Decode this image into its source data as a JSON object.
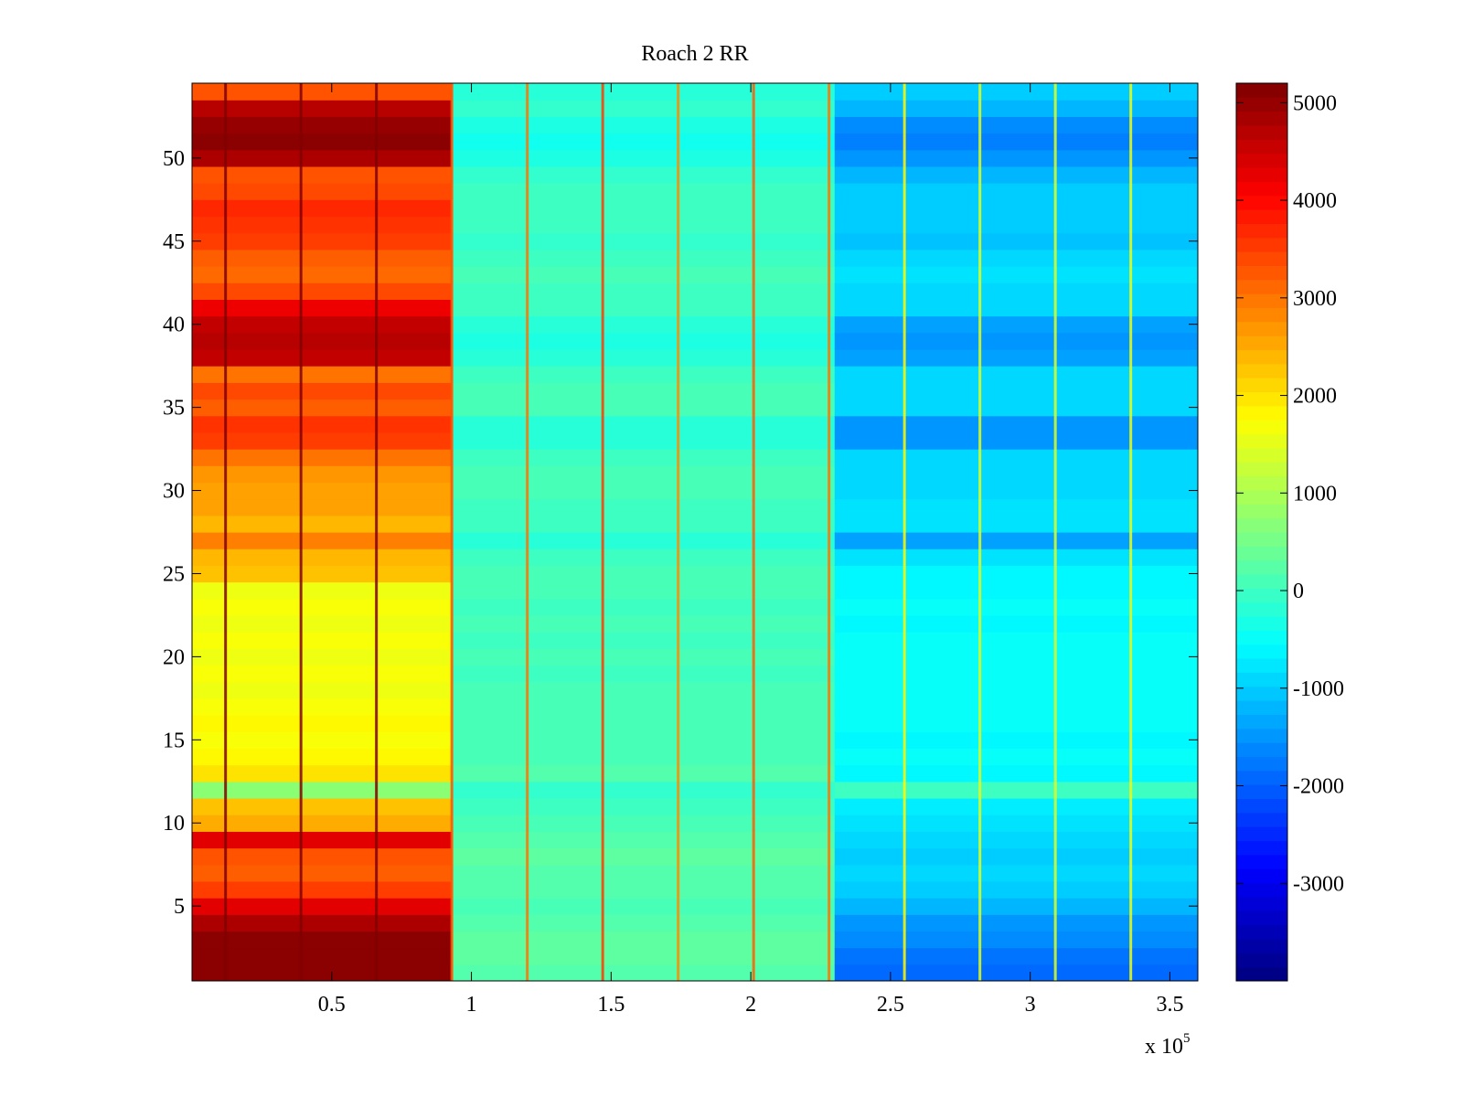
{
  "chart_data": {
    "type": "heatmap",
    "title": "Roach 2 RR",
    "xlabel": "",
    "ylabel": "",
    "x_exponent_label": "x 10",
    "x_exponent_power": "5",
    "xlim": [
      0,
      3.6
    ],
    "ylim": [
      0.5,
      54.5
    ],
    "rows": 54,
    "x_ticks": [
      0.5,
      1,
      1.5,
      2,
      2.5,
      3,
      3.5
    ],
    "x_tick_labels": [
      "0.5",
      "1",
      "1.5",
      "2",
      "2.5",
      "3",
      "3.5"
    ],
    "y_ticks": [
      5,
      10,
      15,
      20,
      25,
      30,
      35,
      40,
      45,
      50
    ],
    "y_tick_labels": [
      "5",
      "10",
      "15",
      "20",
      "25",
      "30",
      "35",
      "40",
      "45",
      "50"
    ],
    "colorbar": {
      "colormap": "jet",
      "min": -4000,
      "max": 5200,
      "ticks": [
        5000,
        4000,
        3000,
        2000,
        1000,
        0,
        -1000,
        -2000,
        -3000
      ],
      "tick_labels": [
        "5000",
        "4000",
        "3000",
        "2000",
        "1000",
        "0",
        "-1000",
        "-2000",
        "-3000"
      ]
    },
    "segments": [
      {
        "x_start": 0,
        "x_end": 0.93,
        "label": "left block (rows 1-54)",
        "row_values_bottom_to_top": [
          5100,
          5100,
          5100,
          4800,
          4300,
          3500,
          3200,
          3300,
          4300,
          2500,
          2300,
          700,
          2000,
          1800,
          1700,
          1800,
          1700,
          1600,
          1700,
          1600,
          1700,
          1600,
          1700,
          1600,
          2300,
          2400,
          2900,
          2400,
          2600,
          2600,
          2700,
          3000,
          3500,
          3600,
          3200,
          3400,
          3000,
          4600,
          4700,
          4600,
          4200,
          3400,
          3100,
          3200,
          3500,
          3600,
          3700,
          3400,
          3300,
          4800,
          5100,
          5000,
          4700,
          3300
        ]
      },
      {
        "x_start": 0.93,
        "x_end": 2.3,
        "label": "middle block",
        "row_values_bottom_to_top": [
          200,
          300,
          300,
          200,
          100,
          200,
          200,
          300,
          200,
          100,
          0,
          -100,
          200,
          100,
          100,
          100,
          100,
          100,
          0,
          100,
          0,
          100,
          0,
          100,
          100,
          0,
          -200,
          0,
          0,
          100,
          100,
          0,
          -200,
          -200,
          100,
          100,
          0,
          -200,
          -300,
          -200,
          0,
          0,
          100,
          0,
          -100,
          0,
          0,
          0,
          -100,
          -300,
          -400,
          -300,
          -100,
          -200
        ]
      },
      {
        "x_start": 2.3,
        "x_end": 3.6,
        "label": "right block",
        "row_values_bottom_to_top": [
          -1900,
          -1800,
          -1600,
          -1500,
          -1200,
          -1000,
          -900,
          -1000,
          -900,
          -800,
          -700,
          0,
          -600,
          -500,
          -600,
          -500,
          -500,
          -500,
          -500,
          -500,
          -500,
          -600,
          -500,
          -600,
          -600,
          -800,
          -1400,
          -800,
          -800,
          -900,
          -900,
          -900,
          -1500,
          -1500,
          -900,
          -900,
          -900,
          -1400,
          -1500,
          -1400,
          -900,
          -900,
          -800,
          -900,
          -1100,
          -1000,
          -1000,
          -1000,
          -1200,
          -1500,
          -1700,
          -1600,
          -1200,
          -1000
        ]
      }
    ],
    "vertical_streaks": [
      {
        "x": 0.12,
        "value": 5200
      },
      {
        "x": 0.39,
        "value": 5200
      },
      {
        "x": 0.66,
        "value": 5200
      },
      {
        "x": 0.93,
        "value": 3300
      },
      {
        "x": 1.2,
        "value": 3000
      },
      {
        "x": 1.47,
        "value": 3500
      },
      {
        "x": 1.74,
        "value": 2800
      },
      {
        "x": 2.01,
        "value": 3200
      },
      {
        "x": 2.28,
        "value": 3000
      },
      {
        "x": 2.55,
        "value": 1800
      },
      {
        "x": 2.82,
        "value": 1500
      },
      {
        "x": 3.09,
        "value": 1400
      },
      {
        "x": 3.36,
        "value": 1600
      }
    ]
  }
}
